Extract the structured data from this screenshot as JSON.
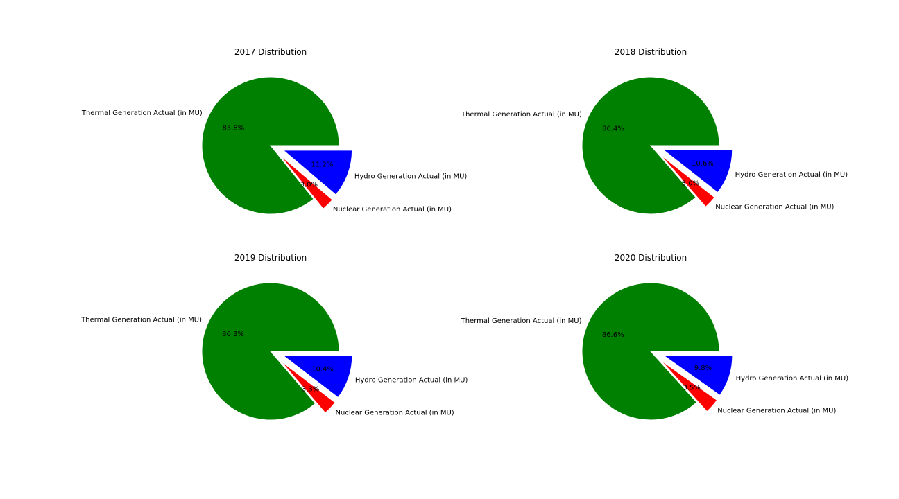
{
  "chart_data": [
    {
      "type": "pie",
      "title": "2017 Distribution",
      "slices": [
        {
          "label": "Thermal Generation Actual (in MU)",
          "value": 85.8,
          "pct_text": "85.8%",
          "color": "#008000",
          "exploded": false
        },
        {
          "label": "Nuclear Generation Actual (in MU)",
          "value": 3.0,
          "pct_text": "3.0%",
          "color": "#ff0000",
          "exploded": true
        },
        {
          "label": "Hydro Generation Actual (in MU)",
          "value": 11.2,
          "pct_text": "11.2%",
          "color": "#0000ff",
          "exploded": true
        }
      ]
    },
    {
      "type": "pie",
      "title": "2018 Distribution",
      "slices": [
        {
          "label": "Thermal Generation Actual (in MU)",
          "value": 86.4,
          "pct_text": "86.4%",
          "color": "#008000",
          "exploded": false
        },
        {
          "label": "Nuclear Generation Actual (in MU)",
          "value": 3.0,
          "pct_text": "3.0%",
          "color": "#ff0000",
          "exploded": true
        },
        {
          "label": "Hydro Generation Actual (in MU)",
          "value": 10.6,
          "pct_text": "10.6%",
          "color": "#0000ff",
          "exploded": true
        }
      ]
    },
    {
      "type": "pie",
      "title": "2019 Distribution",
      "slices": [
        {
          "label": "Thermal Generation Actual (in MU)",
          "value": 86.3,
          "pct_text": "86.3%",
          "color": "#008000",
          "exploded": false
        },
        {
          "label": "Nuclear Generation Actual (in MU)",
          "value": 3.3,
          "pct_text": "3.3%",
          "color": "#ff0000",
          "exploded": true
        },
        {
          "label": "Hydro Generation Actual (in MU)",
          "value": 10.4,
          "pct_text": "10.4%",
          "color": "#0000ff",
          "exploded": true
        }
      ]
    },
    {
      "type": "pie",
      "title": "2020 Distribution",
      "slices": [
        {
          "label": "Thermal Generation Actual (in MU)",
          "value": 86.6,
          "pct_text": "86.6%",
          "color": "#008000",
          "exploded": false
        },
        {
          "label": "Nuclear Generation Actual (in MU)",
          "value": 3.5,
          "pct_text": "3.5%",
          "color": "#ff0000",
          "exploded": true
        },
        {
          "label": "Hydro Generation Actual (in MU)",
          "value": 9.8,
          "pct_text": "9.8%",
          "color": "#0000ff",
          "exploded": true
        }
      ]
    }
  ]
}
